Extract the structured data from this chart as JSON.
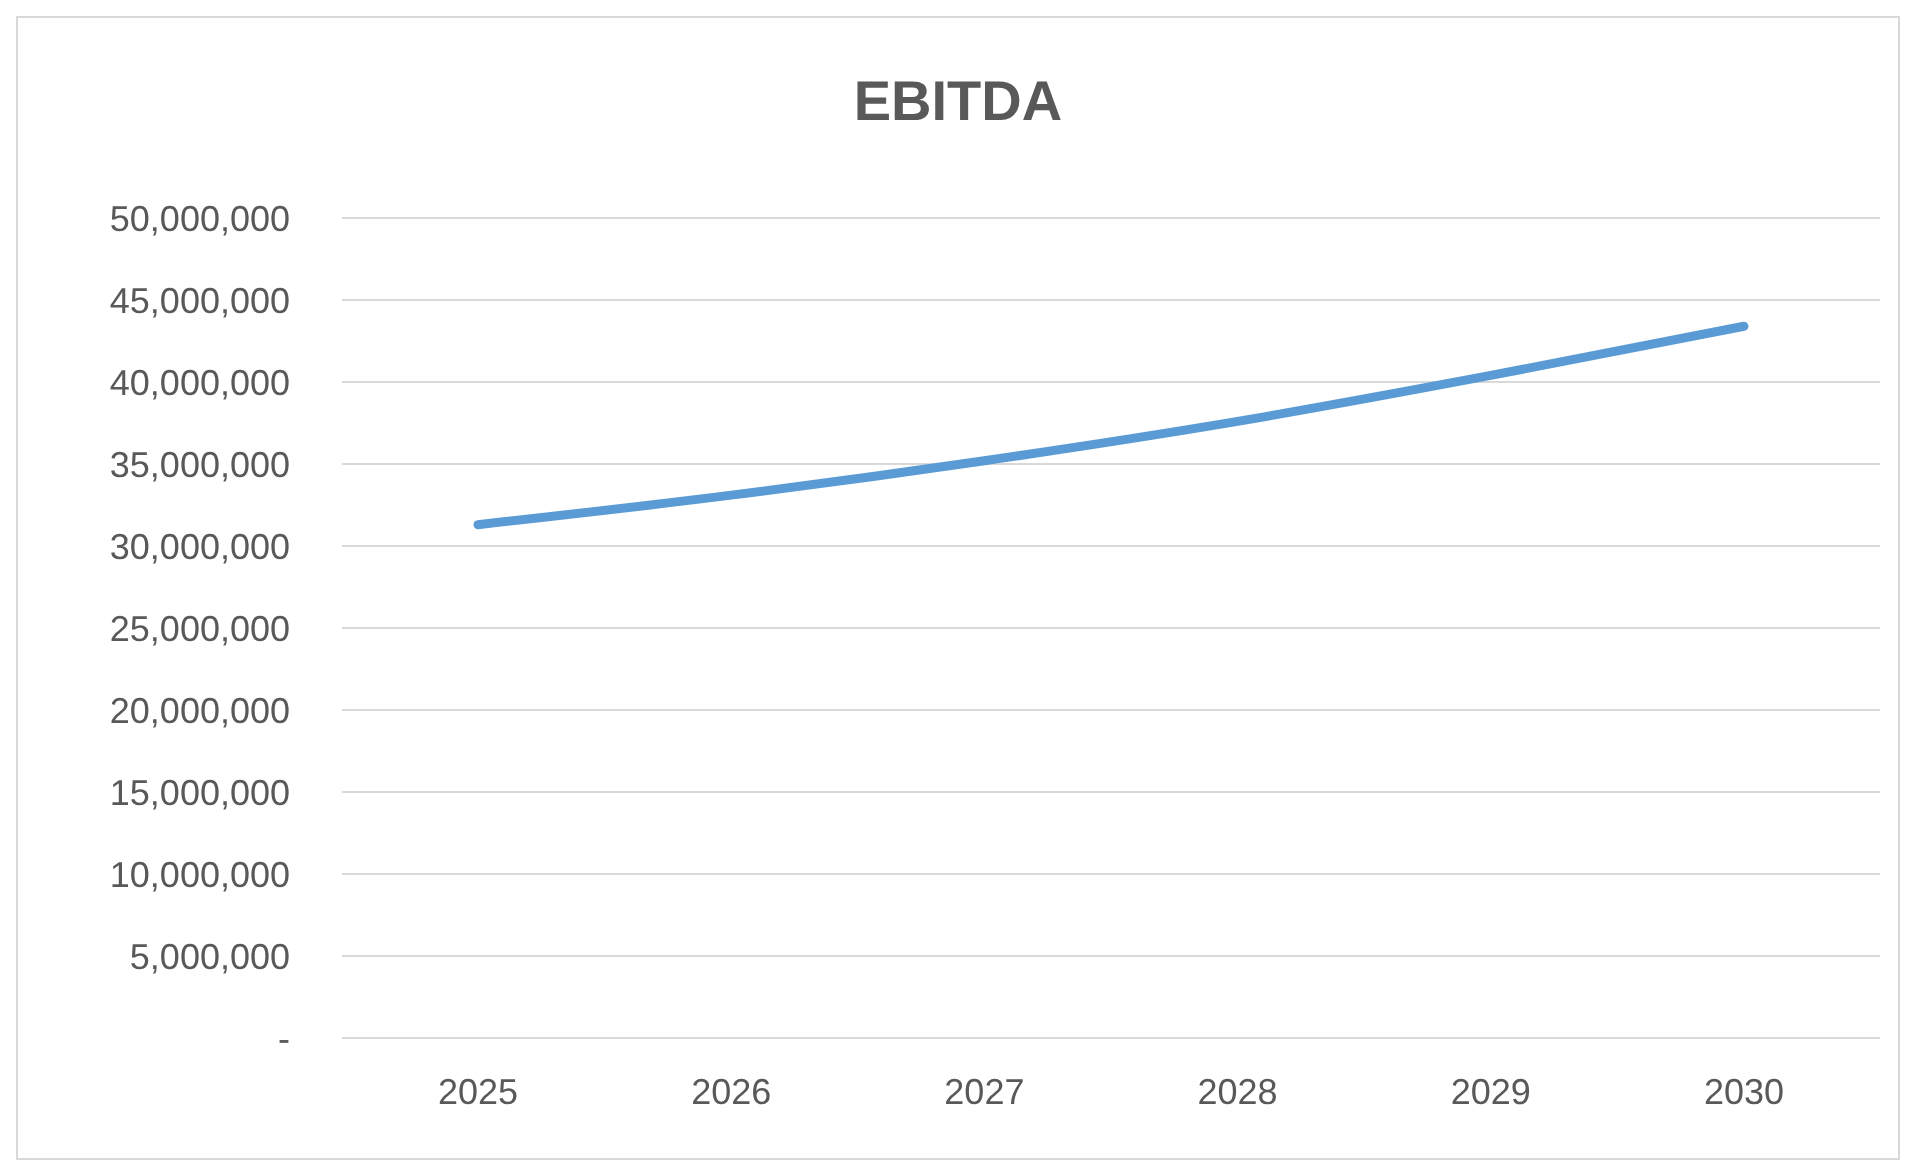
{
  "chart_data": {
    "type": "line",
    "title": "EBITDA",
    "categories": [
      "2025",
      "2026",
      "2027",
      "2028",
      "2029",
      "2030"
    ],
    "series": [
      {
        "color": "#5b9bd5",
        "values": [
          31300000,
          33100000,
          35200000,
          37600000,
          40400000,
          43400000
        ]
      }
    ],
    "ylim": [
      0,
      50000000
    ],
    "yticks": [
      {
        "value": 0,
        "label": "-"
      },
      {
        "value": 5000000,
        "label": "5,000,000"
      },
      {
        "value": 10000000,
        "label": "10,000,000"
      },
      {
        "value": 15000000,
        "label": "15,000,000"
      },
      {
        "value": 20000000,
        "label": "20,000,000"
      },
      {
        "value": 25000000,
        "label": "25,000,000"
      },
      {
        "value": 30000000,
        "label": "30,000,000"
      },
      {
        "value": 35000000,
        "label": "35,000,000"
      },
      {
        "value": 40000000,
        "label": "40,000,000"
      },
      {
        "value": 45000000,
        "label": "45,000,000"
      },
      {
        "value": 50000000,
        "label": "50,000,000"
      }
    ],
    "grid": "y",
    "legend": false,
    "marker": "none",
    "line_style": "solid"
  }
}
